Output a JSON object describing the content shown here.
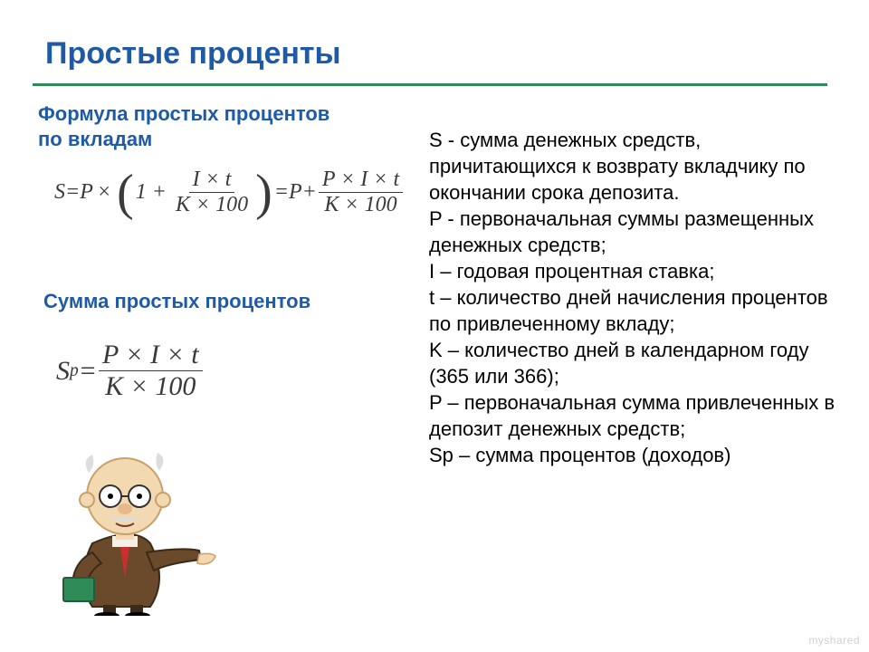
{
  "colors": {
    "title": "#1f5aa6",
    "rule": "#2e8b57",
    "subhead": "#1f5aa6",
    "text": "#000000",
    "formula": "#3a3a3a",
    "watermark": "#d0d0d0"
  },
  "title": "Простые проценты",
  "subhead1": "Формула простых процентов\nпо вкладам",
  "formula1": "S = P \\times (1 + (I \\times t) / (K \\times 100)) = P + (P \\times I \\times t) / (K \\times 100)",
  "formula1_parts": {
    "S": "S",
    "eq1": " = ",
    "P1": "P",
    "mul": "×",
    "lp": "(",
    "one_plus": "1 +",
    "frac1_num": "I × t",
    "frac1_den": "K × 100",
    "rp": ")",
    "eq2": " = ",
    "P2": "P",
    "plus": " + ",
    "frac2_num": "P × I × t",
    "frac2_den": "K × 100"
  },
  "subhead2": "Сумма простых процентов",
  "formula2": "S_p = (P \\times I \\times t) / (K \\times 100)",
  "formula2_parts": {
    "Sp_S": "S",
    "Sp_p": "p",
    "eq": " = ",
    "num": "P × I × t",
    "den": "K × 100"
  },
  "definitions": "S - сумма денежных средств, причитающихся к возврату вкладчику по окончании срока депозита.\nP - первоначальная суммы размещенных денежных средств;\nI – годовая процентная ставка;\nt – количество дней начисления процентов по привлеченному вкладу;\nK – количество дней в календарном году (365 или 366);\nP – первоначальная сумма привлеченных в депозит денежных средств;\nSp – сумма процентов (доходов)",
  "watermark": "myshared",
  "professor_alt": "cartoon-professor-pointing"
}
